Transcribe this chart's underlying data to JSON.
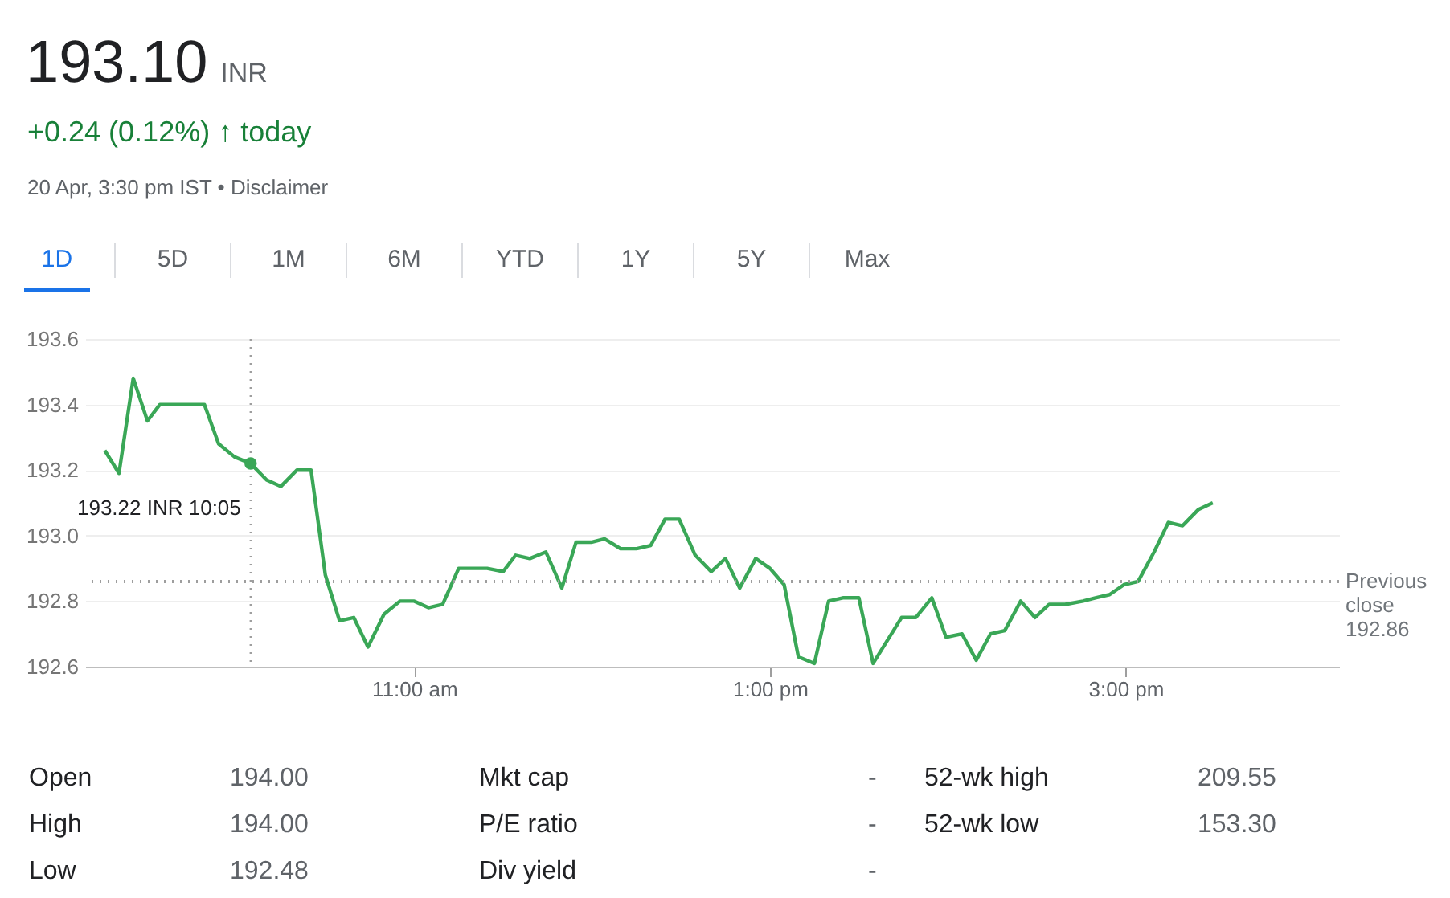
{
  "chart_data": {
    "type": "line",
    "title": "193.10 INR",
    "subtitle": "+0.24 (0.12%) ↑ today",
    "annotations": [
      "20 Apr, 3:30 pm IST • Disclaimer",
      "1D",
      "5D",
      "1M",
      "6M",
      "YTD",
      "1Y",
      "5Y",
      "Max",
      "Open",
      "194.00",
      "Mkt cap",
      "-",
      "52-wk high",
      "209.55",
      "High",
      "194.00",
      "P/E ratio",
      "-",
      "52-wk low",
      "153.30",
      "Low",
      "192.48",
      "Div yield",
      "-",
      {
        "text": "193.22 INR  10:05",
        "x": 10.08,
        "y": 193.22
      }
    ],
    "x": [
      9.26,
      9.34,
      9.42,
      9.5,
      9.57,
      9.82,
      9.9,
      9.99,
      10.08,
      10.17,
      10.25,
      10.34,
      10.42,
      10.5,
      10.58,
      10.66,
      10.74,
      10.83,
      10.92,
      11.0,
      11.08,
      11.16,
      11.25,
      11.33,
      11.41,
      11.5,
      11.57,
      11.65,
      11.74,
      11.83,
      11.91,
      12.0,
      12.07,
      12.16,
      12.25,
      12.33,
      12.41,
      12.49,
      12.58,
      12.67,
      12.75,
      12.83,
      12.92,
      13.0,
      13.08,
      13.16,
      13.25,
      13.33,
      13.41,
      13.5,
      13.58,
      13.66,
      13.74,
      13.82,
      13.91,
      13.99,
      14.08,
      14.16,
      14.24,
      14.32,
      14.41,
      14.49,
      14.57,
      14.66,
      14.76,
      14.83,
      14.91,
      14.99,
      15.07,
      15.16,
      15.24,
      15.32,
      15.41,
      15.49
    ],
    "series": [
      {
        "color": "#3aa757",
        "values": [
          193.26,
          193.19,
          193.48,
          193.35,
          193.4,
          193.4,
          193.28,
          193.24,
          193.22,
          193.17,
          193.15,
          193.2,
          193.2,
          192.88,
          192.74,
          192.75,
          192.66,
          192.76,
          192.8,
          192.8,
          192.78,
          192.79,
          192.9,
          192.9,
          192.9,
          192.89,
          192.94,
          192.93,
          192.95,
          192.84,
          192.98,
          192.98,
          192.99,
          192.96,
          192.96,
          192.97,
          193.05,
          193.05,
          192.94,
          192.89,
          192.93,
          192.84,
          192.93,
          192.9,
          192.85,
          192.63,
          192.61,
          192.8,
          192.81,
          192.81,
          192.61,
          192.68,
          192.75,
          192.75,
          192.81,
          192.69,
          192.7,
          192.62,
          192.7,
          192.71,
          192.8,
          192.75,
          192.79,
          192.79,
          192.8,
          192.81,
          192.82,
          192.85,
          192.86,
          192.95,
          193.04,
          193.03,
          193.08,
          193.1
        ]
      }
    ],
    "xlim": [
      9.15,
      16.2
    ],
    "xticks": [
      {
        "value": 11,
        "label": "11:00 am"
      },
      {
        "value": 13,
        "label": "1:00 pm"
      },
      {
        "value": 15,
        "label": "3:00 pm"
      }
    ],
    "ylim": [
      192.6,
      193.6
    ],
    "yticks": [
      192.6,
      192.8,
      {
        "value": 193,
        "label": "193.0"
      },
      193.2,
      193.4,
      193.6
    ],
    "grid": "y",
    "ref_lines": [
      {
        "axis": "y",
        "value": 192.86,
        "label": "Previous close 192.86",
        "line_style": "dotted",
        "color": "#9e9e9e"
      },
      {
        "axis": "x",
        "value": 10.08,
        "line_style": "dotted",
        "color": "#9e9e9e"
      }
    ]
  }
}
